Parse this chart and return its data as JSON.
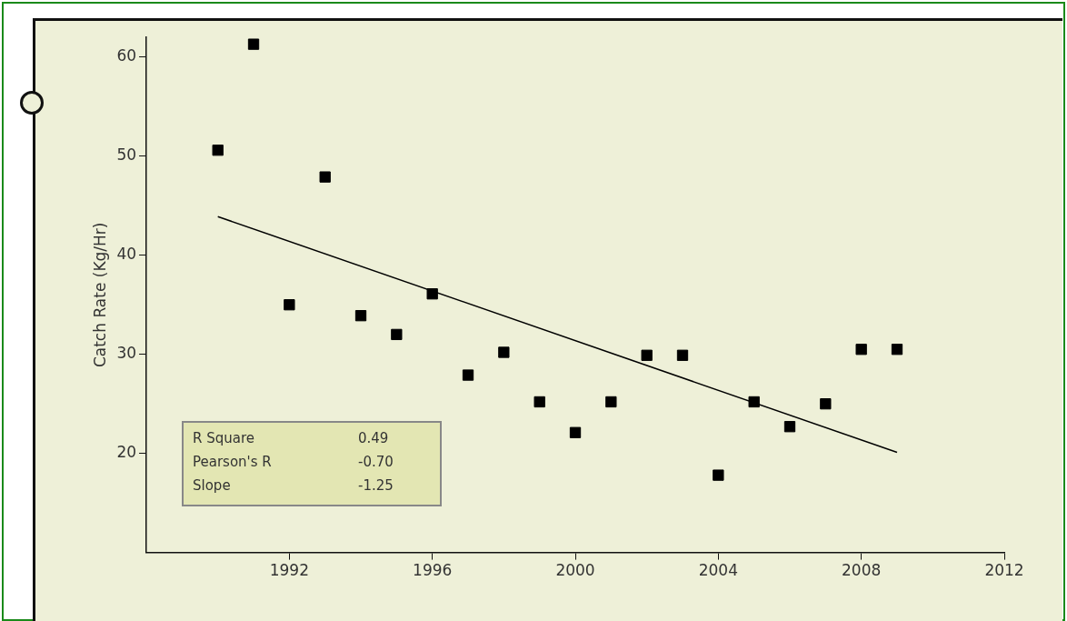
{
  "chart_data": {
    "type": "scatter",
    "ylabel": "Catch Rate (Kg/Hr)",
    "xlim": [
      1988,
      2012
    ],
    "xticks": [
      1992,
      1996,
      2000,
      2004,
      2008,
      2012
    ],
    "ylim": [
      10,
      62
    ],
    "yticks": [
      20,
      30,
      40,
      50,
      60
    ],
    "grid": false,
    "legend": false,
    "series": [
      {
        "marker": "square",
        "color": "#000000",
        "x": [
          1990,
          1991,
          1992,
          1993,
          1994,
          1995,
          1996,
          1997,
          1998,
          1999,
          2000,
          2001,
          2002,
          2003,
          2004,
          2005,
          2006,
          2007,
          2008,
          2009
        ],
        "values": [
          50.6,
          61.3,
          35.0,
          47.9,
          33.9,
          32.0,
          36.1,
          27.9,
          30.2,
          25.2,
          22.1,
          25.2,
          29.9,
          29.9,
          17.8,
          25.2,
          22.7,
          25.0,
          30.5,
          30.5
        ]
      },
      {
        "type": "line",
        "color": "#000000",
        "x": [
          1990,
          2009
        ],
        "values": [
          43.9,
          20.1
        ]
      }
    ],
    "annotations": [
      "R Square",
      "0.49",
      "Pearson's R",
      "-0.70",
      "Slope",
      "-1.25"
    ]
  }
}
